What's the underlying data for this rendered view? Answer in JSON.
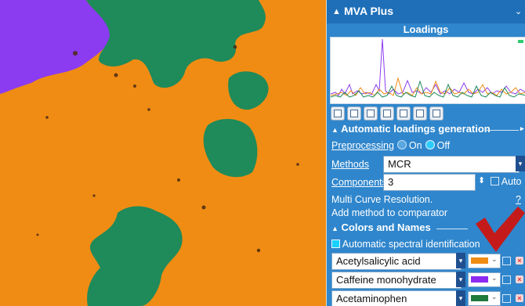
{
  "app": {
    "panel_title": "MVA Plus",
    "subtitle": "Loadings"
  },
  "colors": {
    "panel_bg": "#2f86cc",
    "title_bar": "#1e6fb8",
    "image_orange": "#f08c14",
    "image_green": "#1f8a5a",
    "image_purple": "#8b3cf0",
    "check_red": "#c41a1a"
  },
  "loadings_plot": {
    "series_colors": [
      "#f08c14",
      "#8b3cf0",
      "#1f8a5a"
    ],
    "icons": [
      "info-icon",
      "copy-icon",
      "export-icon",
      "table-icon",
      "grid-icon",
      "chart-icon",
      "chart-alt-icon"
    ]
  },
  "auto_loadings": {
    "section_title": "Automatic loadings generation",
    "preprocessing_label": "Preprocessing",
    "option_on": "On",
    "option_off": "Off",
    "selected": "Off",
    "methods_label": "Methods",
    "method_value": "MCR",
    "components_label": "Components",
    "components_value": "3",
    "auto_label": "Auto",
    "method_description": "Multi Curve Resolution.",
    "help": "?",
    "add_comparator": "Add method to comparator"
  },
  "colors_names": {
    "section_title": "Colors and Names",
    "auto_spectral_label": "Automatic spectral identification",
    "auto_spectral_checked": true,
    "components": [
      {
        "name": "Acetylsalicylic acid",
        "color": "#f08c14"
      },
      {
        "name": "Caffeine monohydrate",
        "color": "#8b2bf0"
      },
      {
        "name": "Acetaminophen",
        "color": "#1f7a3c"
      }
    ]
  }
}
